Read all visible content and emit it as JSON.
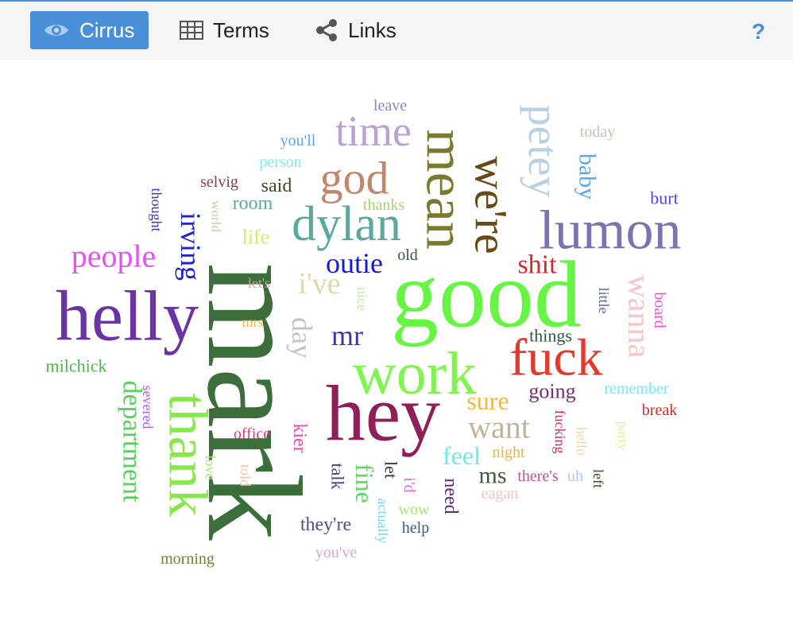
{
  "toolbar": {
    "tabs": [
      {
        "label": "Cirrus",
        "icon": "eye-icon",
        "active": true
      },
      {
        "label": "Terms",
        "icon": "table-icon",
        "active": false
      },
      {
        "label": "Links",
        "icon": "share-icon",
        "active": false
      }
    ],
    "help_label": "?",
    "accent_color": "#4a90d9"
  },
  "words": [
    {
      "text": "mark",
      "color": "#3b6e3b"
    },
    {
      "text": "good",
      "color": "#66f542"
    },
    {
      "text": "hey",
      "color": "#8e1f58"
    },
    {
      "text": "helly",
      "color": "#6a35a2"
    },
    {
      "text": "work",
      "color": "#7ff54f"
    },
    {
      "text": "mean",
      "color": "#7a7a2e"
    },
    {
      "text": "lumon",
      "color": "#7a74b2"
    },
    {
      "text": "thank",
      "color": "#86e84a"
    },
    {
      "text": "fuck",
      "color": "#e23b2a"
    },
    {
      "text": "we're",
      "color": "#6a4a14"
    },
    {
      "text": "dylan",
      "color": "#5aa8a0"
    },
    {
      "text": "time",
      "color": "#bda1d0"
    },
    {
      "text": "god",
      "color": "#c2866a"
    },
    {
      "text": "petey",
      "color": "#b9cfe2"
    },
    {
      "text": "wanna",
      "color": "#f4c6c6"
    },
    {
      "text": "irving",
      "color": "#1c24c8"
    },
    {
      "text": "people",
      "color": "#e451f0"
    },
    {
      "text": "department",
      "color": "#56d15a"
    },
    {
      "text": "want",
      "color": "#c0b49c"
    },
    {
      "text": "i've",
      "color": "#e2d7a8"
    },
    {
      "text": "day",
      "color": "#c4c4c4"
    },
    {
      "text": "outie",
      "color": "#1717d8"
    },
    {
      "text": "shit",
      "color": "#d42a2a"
    },
    {
      "text": "mr",
      "color": "#3a38a8"
    },
    {
      "text": "baby",
      "color": "#5ba7e8"
    },
    {
      "text": "sure",
      "color": "#f0b844"
    },
    {
      "text": "feel",
      "color": "#6ee8e8"
    },
    {
      "text": "ms",
      "color": "#3e5a3e"
    },
    {
      "text": "fine",
      "color": "#5fd65f"
    },
    {
      "text": "going",
      "color": "#7a2a6a"
    },
    {
      "text": "milchick",
      "color": "#4bb44b"
    },
    {
      "text": "kier",
      "color": "#e050a8"
    },
    {
      "text": "said",
      "color": "#3a4a2a"
    },
    {
      "text": "room",
      "color": "#5aa89a"
    },
    {
      "text": "life",
      "color": "#d4e86a"
    },
    {
      "text": "they're",
      "color": "#5a4a8a"
    },
    {
      "text": "need",
      "color": "#5a2a6a"
    },
    {
      "text": "talk",
      "color": "#3a4a7a"
    },
    {
      "text": "let",
      "color": "#3a3a3a"
    },
    {
      "text": "wow",
      "color": "#a8e86a"
    },
    {
      "text": "burt",
      "color": "#5a3ae8"
    },
    {
      "text": "board",
      "color": "#f050c8"
    },
    {
      "text": "remember",
      "color": "#7ae8f0"
    },
    {
      "text": "break",
      "color": "#d42a2a"
    },
    {
      "text": "night",
      "color": "#e8b44a"
    },
    {
      "text": "there's",
      "color": "#c8509a"
    },
    {
      "text": "uh",
      "color": "#b4c8e8"
    },
    {
      "text": "left",
      "color": "#4a4a2a"
    },
    {
      "text": "eagan",
      "color": "#f0c4c4"
    },
    {
      "text": "fucking",
      "color": "#d42a6a"
    },
    {
      "text": "hello",
      "color": "#f0d4a8"
    },
    {
      "text": "party",
      "color": "#e8e8a8"
    },
    {
      "text": "things",
      "color": "#2a5a3a"
    },
    {
      "text": "little",
      "color": "#5a6a8a"
    },
    {
      "text": "today",
      "color": "#c4c4b4"
    },
    {
      "text": "leave",
      "color": "#8a8ab4"
    },
    {
      "text": "you'll",
      "color": "#5aa8e8"
    },
    {
      "text": "person",
      "color": "#7ae8f0"
    },
    {
      "text": "selvig",
      "color": "#8a3a5a"
    },
    {
      "text": "thought",
      "color": "#3a3ab4"
    },
    {
      "text": "world",
      "color": "#d4c4a8"
    },
    {
      "text": "thanks",
      "color": "#a8d46a"
    },
    {
      "text": "old",
      "color": "#3a5a3a"
    },
    {
      "text": "let's",
      "color": "#c4a89a"
    },
    {
      "text": "nice",
      "color": "#c4e8a8"
    },
    {
      "text": "mrs",
      "color": "#f0b44a"
    },
    {
      "text": "severed",
      "color": "#b45ae8"
    },
    {
      "text": "office",
      "color": "#d43a8a"
    },
    {
      "text": "love",
      "color": "#a8e86a"
    },
    {
      "text": "told",
      "color": "#f0c49a"
    },
    {
      "text": "i'd",
      "color": "#e85ae8"
    },
    {
      "text": "actually",
      "color": "#7ad4f0"
    },
    {
      "text": "help",
      "color": "#3a5a7a"
    },
    {
      "text": "you've",
      "color": "#d4a8d4"
    },
    {
      "text": "morning",
      "color": "#7a7a3a"
    }
  ]
}
